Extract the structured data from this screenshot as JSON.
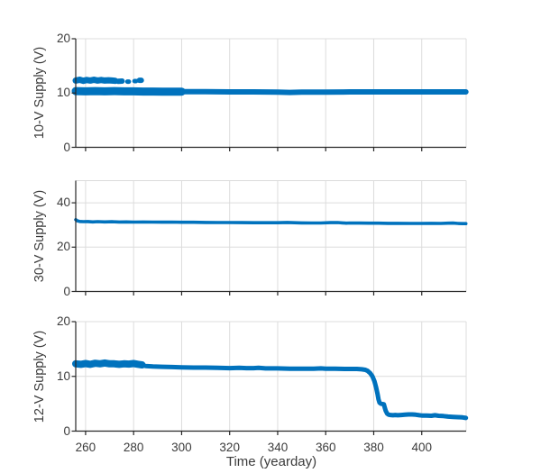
{
  "figure": {
    "background": "#ffffff",
    "line_color": "#0072bd",
    "grid_color": "#dcdcdc",
    "axis_color": "#262626",
    "text_color": "#3b3b3b"
  },
  "chart_data": {
    "type": "line",
    "xlabel": "Time (yearday)",
    "xlim": [
      255.9,
      418.5
    ],
    "xticks": [
      260,
      280,
      300,
      320,
      340,
      360,
      380,
      400
    ],
    "grid": true,
    "legend": null,
    "subplots": [
      {
        "ylabel": "10-V Supply (V)",
        "ylim": [
          0,
          20
        ],
        "yticks": [
          0,
          10,
          20
        ],
        "traces": [
          {
            "name": "main-band",
            "width": 6,
            "points": [
              [
                255.9,
                10.5
              ],
              [
                258,
                10.35
              ],
              [
                260,
                10.45
              ],
              [
                262,
                10.3
              ],
              [
                264,
                10.45
              ],
              [
                266,
                10.3
              ],
              [
                268,
                10.4
              ],
              [
                270,
                10.3
              ],
              [
                272,
                10.4
              ],
              [
                274,
                10.3
              ],
              [
                276,
                10.4
              ],
              [
                278,
                10.3
              ],
              [
                280,
                10.35
              ],
              [
                283,
                10.3
              ],
              [
                286,
                10.35
              ],
              [
                290,
                10.3
              ],
              [
                295,
                10.3
              ],
              [
                300,
                10.25
              ],
              [
                310,
                10.25
              ],
              [
                320,
                10.2
              ],
              [
                330,
                10.2
              ],
              [
                340,
                10.15
              ],
              [
                345,
                10.1
              ],
              [
                350,
                10.15
              ],
              [
                360,
                10.15
              ],
              [
                370,
                10.2
              ],
              [
                380,
                10.2
              ],
              [
                390,
                10.2
              ],
              [
                400,
                10.2
              ],
              [
                410,
                10.2
              ],
              [
                418.4,
                10.2
              ]
            ]
          },
          {
            "name": "early-noise-band",
            "width": 9,
            "points": [
              [
                255.9,
                10.35
              ],
              [
                260,
                10.3
              ],
              [
                264,
                10.35
              ],
              [
                268,
                10.3
              ],
              [
                272,
                10.35
              ],
              [
                276,
                10.3
              ],
              [
                280,
                10.3
              ],
              [
                284,
                10.28
              ],
              [
                288,
                10.28
              ],
              [
                292,
                10.26
              ],
              [
                296,
                10.26
              ],
              [
                300,
                10.25
              ]
            ]
          },
          {
            "name": "upper-cluster",
            "width": 7,
            "points": [
              [
                255.9,
                12.3
              ],
              [
                257.5,
                12.45
              ],
              [
                259,
                12.25
              ],
              [
                260.5,
                12.4
              ],
              [
                262,
                12.3
              ],
              [
                263.5,
                12.45
              ],
              [
                265,
                12.3
              ],
              [
                266.5,
                12.4
              ],
              [
                268,
                12.3
              ],
              [
                269.5,
                12.35
              ],
              [
                271,
                12.3
              ],
              [
                272.3,
                12.25
              ]
            ]
          },
          {
            "name": "upper-blob-1",
            "width": 6,
            "points": [
              [
                273.6,
                12.15
              ],
              [
                275.2,
                12.2
              ]
            ]
          },
          {
            "name": "upper-dot-1",
            "width": 5,
            "points": [
              [
                277.4,
                12.1
              ],
              [
                278,
                12.1
              ]
            ]
          },
          {
            "name": "upper-dot-2",
            "width": 5,
            "points": [
              [
                280.4,
                12.2
              ],
              [
                281,
                12.2
              ]
            ]
          },
          {
            "name": "upper-blob-2",
            "width": 6,
            "points": [
              [
                282.4,
                12.35
              ],
              [
                283.2,
                12.35
              ]
            ]
          }
        ]
      },
      {
        "ylabel": "30-V Supply (V)",
        "ylim": [
          0,
          50
        ],
        "yticks": [
          0,
          20,
          40
        ],
        "traces": [
          {
            "name": "main-line",
            "width": 3.6,
            "points": [
              [
                255.9,
                32.4
              ],
              [
                256.5,
                31.9
              ],
              [
                257.5,
                31.6
              ],
              [
                259,
                31.5
              ],
              [
                261,
                31.55
              ],
              [
                263,
                31.4
              ],
              [
                265,
                31.5
              ],
              [
                268,
                31.4
              ],
              [
                271,
                31.45
              ],
              [
                274,
                31.35
              ],
              [
                277,
                31.4
              ],
              [
                280,
                31.3
              ],
              [
                284,
                31.35
              ],
              [
                288,
                31.3
              ],
              [
                292,
                31.25
              ],
              [
                296,
                31.3
              ],
              [
                300,
                31.2
              ],
              [
                305,
                31.2
              ],
              [
                310,
                31.15
              ],
              [
                315,
                31.1
              ],
              [
                320,
                31.1
              ],
              [
                325,
                31.05
              ],
              [
                330,
                31.0
              ],
              [
                335,
                31.0
              ],
              [
                340,
                31.0
              ],
              [
                344,
                31.15
              ],
              [
                347,
                31.0
              ],
              [
                350,
                30.95
              ],
              [
                354,
                30.9
              ],
              [
                358,
                30.9
              ],
              [
                362,
                31.05
              ],
              [
                365,
                31.1
              ],
              [
                367,
                30.95
              ],
              [
                368.5,
                30.8
              ],
              [
                370,
                30.9
              ],
              [
                374,
                30.85
              ],
              [
                378,
                30.8
              ],
              [
                382,
                30.8
              ],
              [
                386,
                30.75
              ],
              [
                390,
                30.75
              ],
              [
                395,
                30.7
              ],
              [
                400,
                30.7
              ],
              [
                404,
                30.75
              ],
              [
                408,
                30.7
              ],
              [
                411,
                30.8
              ],
              [
                413,
                30.85
              ],
              [
                415,
                30.7
              ],
              [
                417,
                30.6
              ],
              [
                418.4,
                30.6
              ]
            ]
          }
        ]
      },
      {
        "ylabel": "12-V Supply (V)",
        "ylim": [
          0,
          20
        ],
        "yticks": [
          0,
          10,
          20
        ],
        "traces": [
          {
            "name": "early-noise-band",
            "width": 8,
            "points": [
              [
                255.9,
                12.3
              ],
              [
                258,
                12.2
              ],
              [
                260,
                12.35
              ],
              [
                262,
                12.2
              ],
              [
                264,
                12.4
              ],
              [
                266,
                12.3
              ],
              [
                268,
                12.45
              ],
              [
                270,
                12.3
              ],
              [
                272,
                12.3
              ],
              [
                274,
                12.2
              ],
              [
                276,
                12.3
              ],
              [
                278,
                12.25
              ],
              [
                280,
                12.35
              ],
              [
                282,
                12.2
              ],
              [
                283.5,
                12.1
              ]
            ]
          },
          {
            "name": "main-line",
            "width": 5,
            "points": [
              [
                255.9,
                12.25
              ],
              [
                260,
                12.3
              ],
              [
                264,
                12.3
              ],
              [
                268,
                12.35
              ],
              [
                272,
                12.25
              ],
              [
                276,
                12.25
              ],
              [
                280,
                12.3
              ],
              [
                283,
                12.05
              ],
              [
                285,
                11.9
              ],
              [
                288,
                11.8
              ],
              [
                292,
                11.75
              ],
              [
                296,
                11.7
              ],
              [
                300,
                11.65
              ],
              [
                305,
                11.6
              ],
              [
                310,
                11.6
              ],
              [
                315,
                11.55
              ],
              [
                320,
                11.5
              ],
              [
                324,
                11.55
              ],
              [
                327,
                11.5
              ],
              [
                330,
                11.5
              ],
              [
                332,
                11.55
              ],
              [
                335,
                11.45
              ],
              [
                340,
                11.45
              ],
              [
                345,
                11.4
              ],
              [
                350,
                11.4
              ],
              [
                355,
                11.4
              ],
              [
                358,
                11.45
              ],
              [
                360,
                11.4
              ],
              [
                364,
                11.4
              ],
              [
                368,
                11.35
              ],
              [
                371,
                11.35
              ],
              [
                373,
                11.35
              ],
              [
                375,
                11.3
              ],
              [
                376.5,
                11.2
              ],
              [
                377.5,
                11.0
              ],
              [
                378.5,
                10.6
              ],
              [
                379.5,
                10.0
              ],
              [
                380.3,
                9.1
              ],
              [
                381,
                8.0
              ],
              [
                381.6,
                6.8
              ],
              [
                382,
                5.8
              ],
              [
                382.4,
                5.2
              ],
              [
                383,
                5.0
              ],
              [
                383.6,
                4.95
              ],
              [
                384.2,
                4.9
              ],
              [
                384.6,
                4.3
              ],
              [
                385,
                3.7
              ],
              [
                385.6,
                3.2
              ],
              [
                386.2,
                3.0
              ],
              [
                387,
                2.95
              ],
              [
                388,
                2.9
              ],
              [
                389,
                2.95
              ],
              [
                390,
                2.9
              ],
              [
                391.5,
                2.95
              ],
              [
                393,
                3.0
              ],
              [
                394.5,
                3.05
              ],
              [
                396,
                3.05
              ],
              [
                397.5,
                3.0
              ],
              [
                399,
                2.9
              ],
              [
                400,
                2.85
              ],
              [
                402,
                2.85
              ],
              [
                404,
                2.8
              ],
              [
                405.5,
                2.9
              ],
              [
                407,
                2.8
              ],
              [
                409,
                2.75
              ],
              [
                411,
                2.65
              ],
              [
                413,
                2.6
              ],
              [
                415,
                2.55
              ],
              [
                417,
                2.5
              ],
              [
                418.4,
                2.4
              ]
            ]
          }
        ]
      }
    ]
  }
}
